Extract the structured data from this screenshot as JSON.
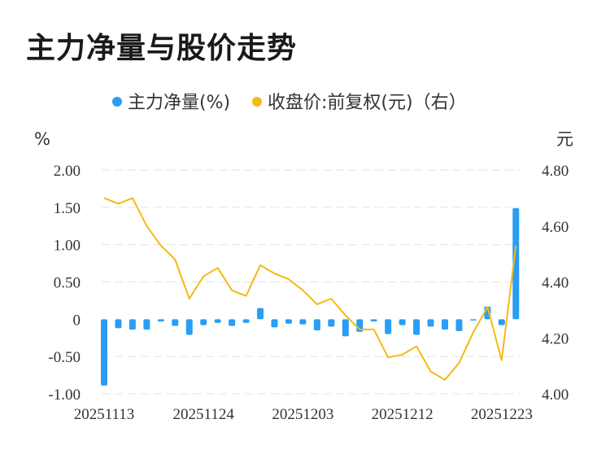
{
  "title": "主力净量与股价走势",
  "chart_data": {
    "type": "bar",
    "legend": {
      "position": "top-center",
      "items": [
        {
          "label": "主力净量(%)",
          "color": "#2a9df4"
        },
        {
          "label": "收盘价:前复权(元)（右）",
          "color": "#f5b914"
        }
      ]
    },
    "left_axis": {
      "unit": "%",
      "ylim": [
        -1.0,
        2.0
      ],
      "ticks": [
        {
          "value": -1.0,
          "label": "-1.00"
        },
        {
          "value": -0.5,
          "label": "-0.50"
        },
        {
          "value": 0,
          "label": "0"
        },
        {
          "value": 0.5,
          "label": "0.50"
        },
        {
          "value": 1.0,
          "label": "1.00"
        },
        {
          "value": 1.5,
          "label": "1.50"
        },
        {
          "value": 2.0,
          "label": "2.00"
        }
      ]
    },
    "right_axis": {
      "unit": "元",
      "ylim": [
        4.0,
        4.8
      ],
      "ticks": [
        {
          "value": 4.0,
          "label": "4.00"
        },
        {
          "value": 4.2,
          "label": "4.20"
        },
        {
          "value": 4.4,
          "label": "4.40"
        },
        {
          "value": 4.6,
          "label": "4.60"
        },
        {
          "value": 4.8,
          "label": "4.80"
        }
      ]
    },
    "x_tick_labels": [
      {
        "index": 0,
        "label": "20251113"
      },
      {
        "index": 7,
        "label": "20251124"
      },
      {
        "index": 14,
        "label": "20251203"
      },
      {
        "index": 21,
        "label": "20251212"
      },
      {
        "index": 28,
        "label": "20251223"
      }
    ],
    "grid": true,
    "series": [
      {
        "name": "主力净量(%)",
        "type": "bar",
        "axis": "left",
        "color": "#2a9df4",
        "values": [
          -0.89,
          -0.12,
          -0.14,
          -0.14,
          -0.03,
          -0.09,
          -0.21,
          -0.08,
          -0.05,
          -0.09,
          -0.05,
          0.15,
          -0.11,
          -0.06,
          -0.07,
          -0.15,
          -0.1,
          -0.23,
          -0.17,
          -0.03,
          -0.2,
          -0.08,
          -0.21,
          -0.1,
          -0.14,
          -0.16,
          -0.01,
          0.17,
          -0.08,
          1.49
        ]
      },
      {
        "name": "收盘价:前复权(元)（右）",
        "type": "line",
        "axis": "right",
        "color": "#f5b914",
        "values": [
          4.7,
          4.68,
          4.7,
          4.6,
          4.53,
          4.48,
          4.34,
          4.42,
          4.45,
          4.37,
          4.35,
          4.46,
          4.43,
          4.41,
          4.37,
          4.32,
          4.34,
          4.28,
          4.23,
          4.23,
          4.13,
          4.14,
          4.17,
          4.08,
          4.05,
          4.11,
          4.22,
          4.31,
          4.12,
          4.53
        ]
      }
    ]
  }
}
